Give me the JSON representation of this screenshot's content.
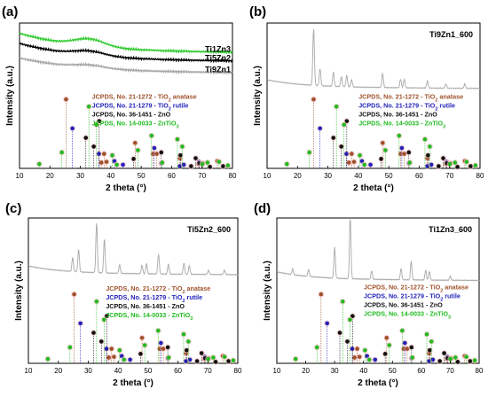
{
  "colors": {
    "anatase": "#a0522d",
    "rutile": "#2222bb",
    "zno": "#111111",
    "zntio3": "#22bb22",
    "curve_gray": "#a8a8a8",
    "curve_green": "#33cc33",
    "curve_black": "#000000",
    "halo": "#f7c4c4"
  },
  "chart_data": [
    {
      "type": "line",
      "panel_label": "(a)",
      "xlabel": "2 theta (°)",
      "ylabel": "Intensity (a.u.)",
      "xlim": [
        10,
        80
      ],
      "xticks": [
        10,
        20,
        30,
        40,
        50,
        60,
        70,
        80
      ],
      "series": [
        {
          "name": "Ti1Zn3",
          "color": "#33cc33",
          "kind": "amorphous",
          "base": 0.93,
          "end": 0.8,
          "hump_center": 33,
          "hump_amp": 0.05
        },
        {
          "name": "Ti5Zn2",
          "color": "#000000",
          "kind": "amorphous",
          "base": 0.86,
          "end": 0.74,
          "hump_center": 33,
          "hump_amp": 0.03
        },
        {
          "name": "Ti9Zn1",
          "color": "#a8a8a8",
          "kind": "amorphous",
          "base": 0.76,
          "end": 0.66,
          "hump_center": 33,
          "hump_amp": 0.02
        }
      ]
    },
    {
      "type": "line",
      "panel_label": "(b)",
      "title": "Ti9Zn1_600",
      "xlabel": "2 theta (°)",
      "ylabel": "Intensity (a.u.)",
      "xlim": [
        10,
        80
      ],
      "xticks": [
        10,
        20,
        30,
        40,
        50,
        60,
        70,
        80
      ],
      "series": [
        {
          "color": "#a8a8a8",
          "kind": "crystal",
          "base": 0.56,
          "peaks": [
            [
              25.3,
              0.4
            ],
            [
              27.4,
              0.12
            ],
            [
              31.8,
              0.1
            ],
            [
              34.4,
              0.07
            ],
            [
              36.2,
              0.08
            ],
            [
              37.8,
              0.05
            ],
            [
              48.0,
              0.1
            ],
            [
              53.9,
              0.06
            ],
            [
              55.1,
              0.06
            ],
            [
              62.7,
              0.05
            ],
            [
              68.8,
              0.03
            ],
            [
              75.0,
              0.03
            ]
          ]
        }
      ]
    },
    {
      "type": "line",
      "panel_label": "(c)",
      "title": "Ti5Zn2_600",
      "xlabel": "2 theta (°)",
      "ylabel": "Intensity (a.u.)",
      "xlim": [
        10,
        80
      ],
      "xticks": [
        10,
        20,
        30,
        40,
        50,
        60,
        70,
        80
      ],
      "series": [
        {
          "color": "#a8a8a8",
          "kind": "crystal",
          "base": 0.62,
          "peaks": [
            [
              24.8,
              0.1
            ],
            [
              26.8,
              0.16
            ],
            [
              32.8,
              0.35
            ],
            [
              35.4,
              0.24
            ],
            [
              40.5,
              0.06
            ],
            [
              48.0,
              0.06
            ],
            [
              49.5,
              0.07
            ],
            [
              53.5,
              0.14
            ],
            [
              56.8,
              0.07
            ],
            [
              62.0,
              0.08
            ],
            [
              63.8,
              0.06
            ],
            [
              70.2,
              0.03
            ],
            [
              75.5,
              0.03
            ]
          ]
        }
      ]
    },
    {
      "type": "line",
      "panel_label": "(d)",
      "title": "Ti1Zn3_600",
      "xlabel": "2 theta (°)",
      "ylabel": "Intensity (a.u.)",
      "xlim": [
        10,
        80
      ],
      "xticks": [
        10,
        20,
        30,
        40,
        50,
        60,
        70,
        80
      ],
      "series": [
        {
          "color": "#a8a8a8",
          "kind": "crystal",
          "base": 0.58,
          "peaks": [
            [
              15.5,
              0.04
            ],
            [
              21.0,
              0.05
            ],
            [
              30.0,
              0.22
            ],
            [
              35.4,
              0.45
            ],
            [
              42.8,
              0.06
            ],
            [
              53.0,
              0.08
            ],
            [
              56.5,
              0.13
            ],
            [
              61.5,
              0.07
            ],
            [
              62.8,
              0.06
            ],
            [
              70.0,
              0.03
            ]
          ]
        }
      ]
    }
  ],
  "references": {
    "legend": [
      {
        "key": "anatase",
        "prefix": "JCPDS, No. 21-1272 - TiO",
        "sub": "2",
        "suffix": " anatase"
      },
      {
        "key": "rutile",
        "prefix": "JCPDS, No. 21-1279 - TiO",
        "sub": "2",
        "suffix": " rutile"
      },
      {
        "key": "zno",
        "prefix": "JCPDS, No. 36-1451 - ZnO",
        "sub": "",
        "suffix": ""
      },
      {
        "key": "zntio3",
        "prefix": "JCPDS, No. 14-0033 - ZnTiO",
        "sub": "3",
        "suffix": ""
      }
    ],
    "sticks": [
      {
        "key": "anatase",
        "x": 25.3,
        "h": 0.95
      },
      {
        "key": "anatase",
        "x": 36.9,
        "h": 0.08
      },
      {
        "key": "anatase",
        "x": 37.8,
        "h": 0.2
      },
      {
        "key": "anatase",
        "x": 38.6,
        "h": 0.09
      },
      {
        "key": "anatase",
        "x": 48.0,
        "h": 0.35
      },
      {
        "key": "anatase",
        "x": 53.9,
        "h": 0.2
      },
      {
        "key": "anatase",
        "x": 55.1,
        "h": 0.2
      },
      {
        "key": "anatase",
        "x": 62.7,
        "h": 0.14
      },
      {
        "key": "anatase",
        "x": 68.8,
        "h": 0.06
      },
      {
        "key": "anatase",
        "x": 70.3,
        "h": 0.07
      },
      {
        "key": "anatase",
        "x": 75.0,
        "h": 0.1
      },
      {
        "key": "rutile",
        "x": 27.4,
        "h": 0.55
      },
      {
        "key": "rutile",
        "x": 36.1,
        "h": 0.2
      },
      {
        "key": "rutile",
        "x": 41.2,
        "h": 0.1
      },
      {
        "key": "rutile",
        "x": 44.0,
        "h": 0.05
      },
      {
        "key": "rutile",
        "x": 54.3,
        "h": 0.28
      },
      {
        "key": "rutile",
        "x": 56.6,
        "h": 0.07
      },
      {
        "key": "rutile",
        "x": 62.7,
        "h": 0.03
      },
      {
        "key": "rutile",
        "x": 64.0,
        "h": 0.05
      },
      {
        "key": "rutile",
        "x": 69.0,
        "h": 0.09
      },
      {
        "key": "zno",
        "x": 31.8,
        "h": 0.42
      },
      {
        "key": "zno",
        "x": 34.4,
        "h": 0.3
      },
      {
        "key": "zno",
        "x": 36.2,
        "h": 0.65
      },
      {
        "key": "zno",
        "x": 47.5,
        "h": 0.13
      },
      {
        "key": "zno",
        "x": 56.6,
        "h": 0.22
      },
      {
        "key": "zno",
        "x": 62.9,
        "h": 0.18
      },
      {
        "key": "zno",
        "x": 66.4,
        "h": 0.03
      },
      {
        "key": "zno",
        "x": 67.9,
        "h": 0.14
      },
      {
        "key": "zno",
        "x": 69.1,
        "h": 0.07
      },
      {
        "key": "zno",
        "x": 72.6,
        "h": 0.02
      },
      {
        "key": "zno",
        "x": 76.9,
        "h": 0.03
      },
      {
        "key": "zntio3",
        "x": 16.5,
        "h": 0.06
      },
      {
        "key": "zntio3",
        "x": 23.9,
        "h": 0.22
      },
      {
        "key": "zntio3",
        "x": 32.8,
        "h": 0.85
      },
      {
        "key": "zntio3",
        "x": 35.3,
        "h": 0.6
      },
      {
        "key": "zntio3",
        "x": 40.5,
        "h": 0.18
      },
      {
        "key": "zntio3",
        "x": 42.0,
        "h": 0.05
      },
      {
        "key": "zntio3",
        "x": 48.9,
        "h": 0.25
      },
      {
        "key": "zntio3",
        "x": 53.4,
        "h": 0.45
      },
      {
        "key": "zntio3",
        "x": 56.9,
        "h": 0.08
      },
      {
        "key": "zntio3",
        "x": 61.9,
        "h": 0.4
      },
      {
        "key": "zntio3",
        "x": 63.5,
        "h": 0.3
      },
      {
        "key": "zntio3",
        "x": 70.1,
        "h": 0.06
      },
      {
        "key": "zntio3",
        "x": 71.8,
        "h": 0.08
      },
      {
        "key": "zntio3",
        "x": 75.6,
        "h": 0.09
      },
      {
        "key": "zntio3",
        "x": 78.5,
        "h": 0.04
      }
    ]
  }
}
